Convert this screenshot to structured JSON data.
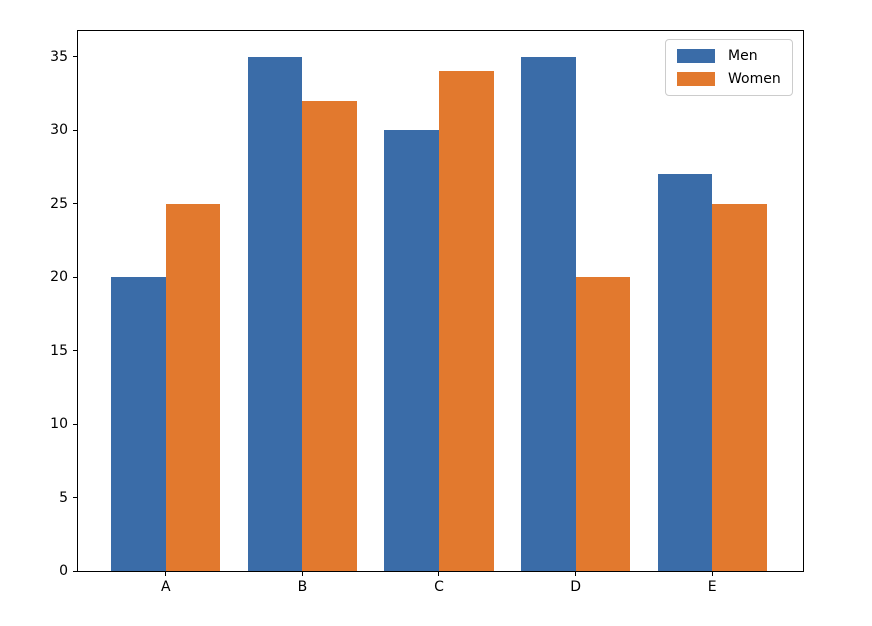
{
  "figure": {
    "background_color": "#ffffff",
    "spine_color": "#000000",
    "legend_border_color": "#cccccc"
  },
  "chart_data": {
    "type": "bar",
    "title": "",
    "xlabel": "",
    "ylabel": "",
    "categories": [
      "A",
      "B",
      "C",
      "D",
      "E"
    ],
    "series": [
      {
        "name": "Men",
        "color": "#3A6CA8",
        "values": [
          20,
          35,
          30,
          35,
          27
        ]
      },
      {
        "name": "Women",
        "color": "#E2792E",
        "values": [
          25,
          32,
          34,
          20,
          25
        ]
      }
    ],
    "bar_width": 0.4,
    "xlim": [
      -0.643,
      4.665
    ],
    "ylim": [
      0,
      36.75
    ],
    "yticks": [
      0,
      5,
      10,
      15,
      20,
      25,
      30,
      35
    ],
    "grid": false,
    "legend_position": "upper right",
    "legend_entries": [
      "Men",
      "Women"
    ]
  }
}
